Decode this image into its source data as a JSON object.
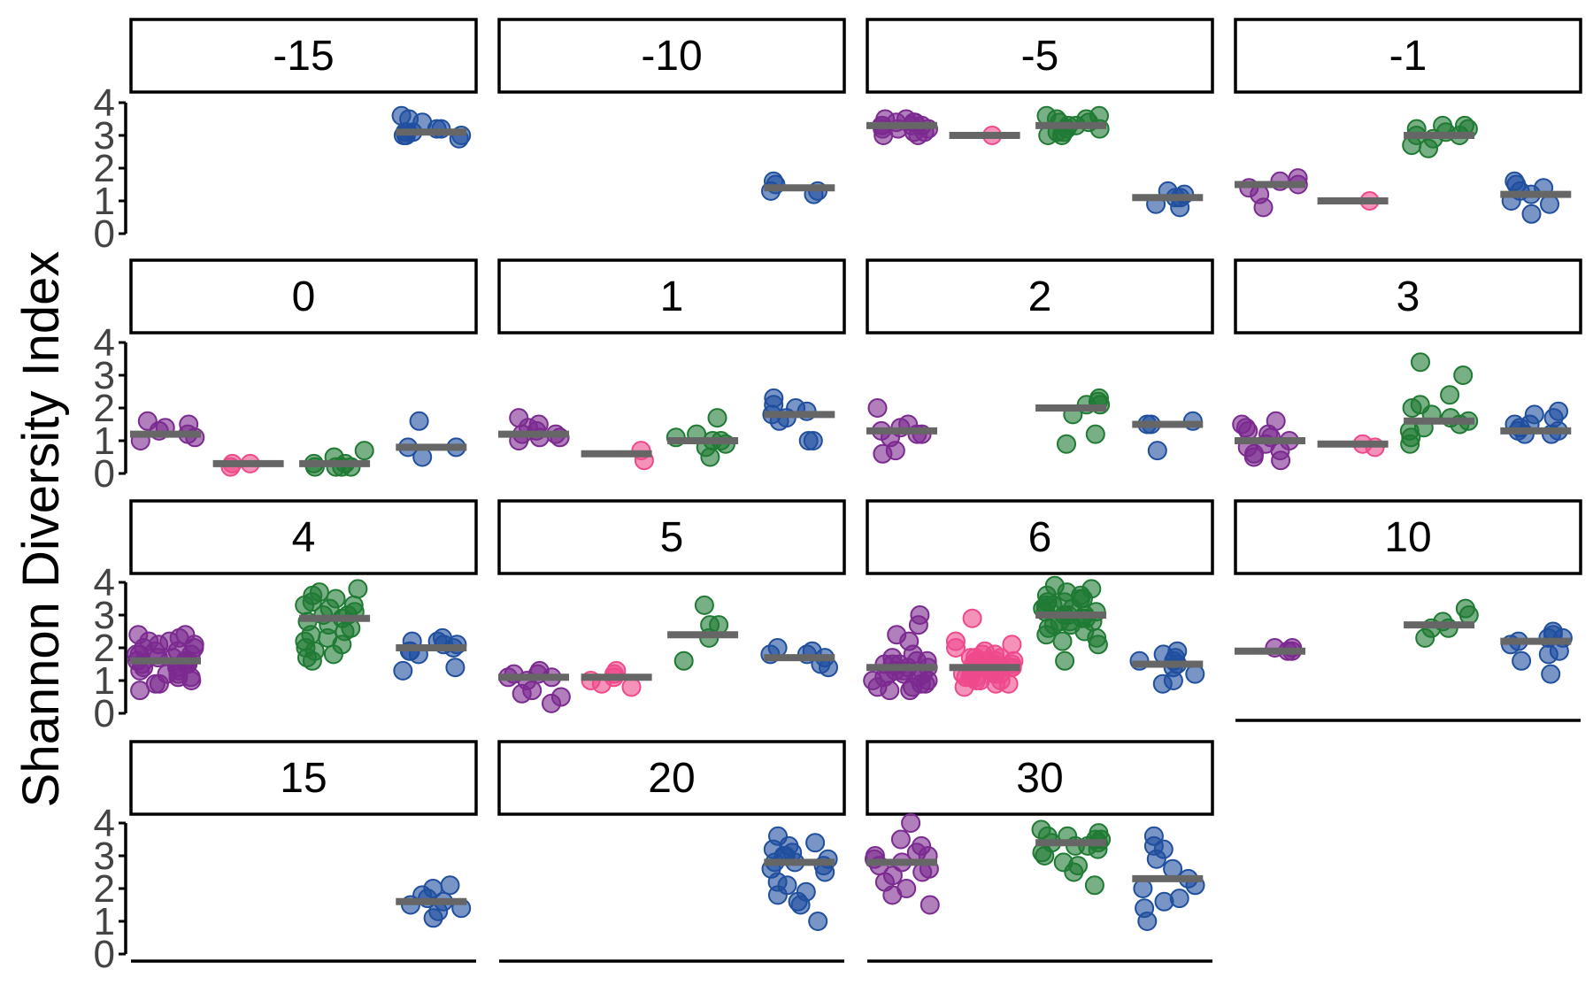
{
  "chart_data": {
    "type": "scatter",
    "ylabel": "Shannon Diversity Index",
    "y_ticks": [
      "0",
      "1",
      "2",
      "3",
      "4"
    ],
    "ylim": [
      0,
      4
    ],
    "group_colors": [
      "#7b2a90",
      "#ee4a8b",
      "#1f7a33",
      "#1f4f9e"
    ],
    "mean_line_color": "#666666",
    "point_alpha": 0.6,
    "panels": [
      {
        "label": "-15",
        "groups": [
          null,
          null,
          null,
          {
            "mean": 3.1,
            "values": [
              3.4,
              3.2,
              3.0,
              3.6,
              3.1,
              3.5,
              3.2,
              3.0,
              3.1,
              2.9,
              3.0,
              3.1
            ]
          }
        ]
      },
      {
        "label": "-10",
        "groups": [
          null,
          null,
          null,
          {
            "mean": 1.4,
            "values": [
              1.2,
              1.3,
              1.3,
              1.5,
              1.6
            ]
          }
        ]
      },
      {
        "label": "-5",
        "groups": [
          {
            "mean": 3.3,
            "values": [
              3.4,
              3.2,
              3.3,
              3.5,
              3.1,
              3.4,
              3.3,
              3.0,
              3.2,
              3.5,
              3.3,
              3.1,
              3.2,
              3.0,
              3.4,
              3.3
            ]
          },
          {
            "mean": 3.0,
            "values": [
              3.0
            ]
          },
          {
            "mean": 3.3,
            "values": [
              3.5,
              3.2,
              3.0,
              3.4,
              3.1,
              3.3,
              3.6,
              3.2,
              3.5,
              3.1,
              3.3,
              3.6,
              3.0,
              3.4
            ]
          },
          {
            "mean": 1.1,
            "values": [
              1.1,
              1.3,
              1.2,
              1.1,
              0.9,
              0.8
            ]
          }
        ]
      },
      {
        "label": "-1",
        "groups": [
          {
            "mean": 1.5,
            "values": [
              1.5,
              0.8,
              1.2,
              1.4,
              1.6,
              1.7
            ]
          },
          {
            "mean": 1.0,
            "values": [
              1.0
            ]
          },
          {
            "mean": 3.0,
            "values": [
              3.0,
              3.2,
              3.3,
              3.1,
              2.9,
              3.0,
              2.7,
              2.6,
              3.2,
              3.3
            ]
          },
          {
            "mean": 1.2,
            "values": [
              0.6,
              1.5,
              1.3,
              0.9,
              1.2,
              1.4,
              1.0,
              1.6
            ]
          }
        ]
      },
      {
        "label": "0",
        "groups": [
          {
            "mean": 1.2,
            "values": [
              1.3,
              1.0,
              1.5,
              1.4,
              1.6,
              1.2,
              1.1
            ]
          },
          {
            "mean": 0.3,
            "values": [
              0.3,
              0.3,
              0.2
            ]
          },
          {
            "mean": 0.3,
            "values": [
              0.2,
              0.3,
              0.2,
              0.5,
              0.7,
              0.2,
              0.3,
              0.2
            ]
          },
          {
            "mean": 0.8,
            "values": [
              0.8,
              0.8,
              0.5,
              1.6
            ]
          }
        ]
      },
      {
        "label": "1",
        "groups": [
          {
            "mean": 1.2,
            "values": [
              1.5,
              1.2,
              1.1,
              1.3,
              1.7,
              1.0,
              1.2,
              1.4,
              1.1
            ]
          },
          {
            "mean": 0.6,
            "values": [
              0.4,
              0.7
            ]
          },
          {
            "mean": 1.0,
            "values": [
              1.1,
              1.7,
              1.0,
              0.9,
              1.0,
              1.2,
              0.8,
              0.5
            ]
          },
          {
            "mean": 1.8,
            "values": [
              1.9,
              1.7,
              2.0,
              2.3,
              2.1,
              1.8,
              1.6,
              1.0,
              1.0
            ]
          }
        ]
      },
      {
        "label": "2",
        "groups": [
          {
            "mean": 1.3,
            "values": [
              1.4,
              1.2,
              1.5,
              2.0,
              1.1,
              1.3,
              0.6,
              0.7,
              1.2
            ]
          },
          null,
          {
            "mean": 2.0,
            "values": [
              1.2,
              2.3,
              1.8,
              2.1,
              0.9,
              2.2,
              2.1
            ]
          },
          {
            "mean": 1.5,
            "values": [
              1.6,
              1.5,
              0.7,
              1.5
            ]
          }
        ]
      },
      {
        "label": "3",
        "groups": [
          {
            "mean": 1.0,
            "values": [
              1.5,
              1.2,
              0.8,
              0.5,
              1.6,
              0.6,
              1.0,
              1.3,
              0.9,
              0.4,
              1.1,
              0.7,
              1.4
            ]
          },
          {
            "mean": 0.9,
            "values": [
              0.9,
              0.8
            ]
          },
          {
            "mean": 1.6,
            "values": [
              3.4,
              3.0,
              2.4,
              2.1,
              1.5,
              1.3,
              2.0,
              1.6,
              1.8,
              1.1,
              0.9,
              1.7,
              1.4
            ]
          },
          {
            "mean": 1.3,
            "values": [
              1.3,
              1.5,
              1.2,
              1.9,
              1.4,
              1.7,
              1.3,
              1.8,
              1.2,
              1.5
            ]
          }
        ]
      },
      {
        "label": "4",
        "groups": [
          {
            "mean": 1.6,
            "values": [
              2.4,
              1.8,
              1.2,
              0.9,
              1.5,
              2.2,
              0.7,
              1.1,
              1.9,
              2.1,
              1.6,
              1.4,
              2.3,
              1.0,
              1.7,
              2.0,
              1.3,
              1.8,
              1.5,
              2.4,
              1.2,
              1.6,
              0.9,
              1.9,
              2.2,
              1.4,
              1.7,
              1.1,
              2.0,
              1.5,
              1.8,
              1.3,
              2.1,
              1.6
            ]
          },
          null,
          {
            "mean": 2.9,
            "values": [
              3.5,
              3.3,
              3.1,
              2.8,
              2.4,
              2.0,
              1.6,
              3.7,
              3.4,
              3.0,
              2.6,
              2.2,
              1.8,
              3.6,
              3.2,
              2.9,
              2.5,
              2.1,
              1.7,
              3.8,
              3.3,
              2.7,
              2.3,
              1.9,
              3.0
            ]
          },
          {
            "mean": 2.0,
            "values": [
              1.4,
              1.3,
              2.1,
              1.9,
              2.2,
              2.3,
              1.8,
              2.0,
              2.1,
              1.9,
              2.2
            ]
          }
        ]
      },
      {
        "label": "5",
        "groups": [
          {
            "mean": 1.1,
            "values": [
              1.0,
              1.2,
              0.7,
              0.3,
              1.1,
              0.5,
              1.3,
              1.2,
              0.6,
              1.1
            ]
          },
          {
            "mean": 1.1,
            "values": [
              1.0,
              0.9,
              1.1,
              0.8,
              1.3,
              1.2
            ]
          },
          {
            "mean": 2.4,
            "values": [
              2.3,
              2.7,
              3.3,
              1.6,
              2.7
            ]
          },
          {
            "mean": 1.7,
            "values": [
              1.8,
              1.7,
              2.0,
              1.5,
              1.8,
              1.9,
              1.4
            ]
          }
        ]
      },
      {
        "label": "6",
        "groups": [
          {
            "mean": 1.4,
            "values": [
              1.5,
              1.2,
              0.8,
              1.7,
              2.4,
              1.0,
              1.3,
              2.7,
              0.7,
              1.4,
              1.1,
              1.6,
              3.0,
              0.9,
              1.2,
              1.5,
              1.8,
              1.0,
              1.3,
              0.8,
              1.6,
              2.2,
              1.1,
              1.4,
              0.7,
              1.2,
              1.5,
              0.9
            ]
          },
          {
            "mean": 1.4,
            "values": [
              2.1,
              1.8,
              1.5,
              1.2,
              0.9,
              1.6,
              1.3,
              1.0,
              2.0,
              1.7,
              1.4,
              1.1,
              0.8,
              1.5,
              1.2,
              2.2,
              1.9,
              1.6,
              1.3,
              1.0,
              1.7,
              1.4,
              1.1,
              2.9,
              1.5,
              1.2,
              0.9,
              1.6,
              1.3,
              1.8,
              1.5,
              1.2,
              1.6,
              1.4,
              1.1,
              1.7,
              1.3,
              1.0,
              1.5
            ]
          },
          {
            "mean": 3.0,
            "values": [
              3.8,
              3.5,
              3.2,
              2.9,
              2.6,
              3.6,
              3.3,
              3.0,
              2.7,
              2.2,
              3.9,
              3.4,
              3.1,
              2.8,
              2.4,
              3.7,
              3.2,
              2.9,
              2.5,
              2.1,
              3.5,
              3.0,
              2.7,
              3.3,
              2.8,
              3.6,
              3.1,
              1.6,
              2.3,
              3.4,
              2.8,
              3.0
            ]
          },
          {
            "mean": 1.5,
            "values": [
              1.9,
              1.5,
              0.9,
              1.7,
              1.2,
              1.6,
              1.8,
              1.0,
              1.4,
              1.6
            ]
          }
        ]
      },
      {
        "label": "10",
        "groups": [
          {
            "mean": 1.9,
            "values": [
              2.0,
              2.0,
              1.9,
              1.9
            ]
          },
          null,
          {
            "mean": 2.7,
            "values": [
              3.0,
              2.6,
              2.3,
              2.8,
              3.2,
              2.6
            ]
          },
          {
            "mean": 2.2,
            "values": [
              2.2,
              1.9,
              2.5,
              1.6,
              2.3,
              1.2,
              2.4,
              2.1,
              2.3,
              1.8
            ]
          }
        ]
      },
      {
        "label": "15",
        "groups": [
          null,
          null,
          null,
          {
            "mean": 1.6,
            "values": [
              1.5,
              1.8,
              1.3,
              2.0,
              1.6,
              1.1,
              1.7,
              1.4,
              2.1
            ]
          }
        ]
      },
      {
        "label": "20",
        "groups": [
          null,
          null,
          null,
          {
            "mean": 2.8,
            "values": [
              2.8,
              2.6,
              1.9,
              3.0,
              1.0,
              3.4,
              2.2,
              1.6,
              3.1,
              2.7,
              1.8,
              3.3,
              2.5,
              2.9,
              3.6,
              2.1,
              1.5,
              3.0,
              2.8,
              3.2
            ]
          }
        ]
      },
      {
        "label": "30",
        "groups": [
          {
            "mean": 2.8,
            "values": [
              3.5,
              3.0,
              2.8,
              4.0,
              2.5,
              3.0,
              2.2,
              2.9,
              1.5,
              2.6,
              3.3,
              2.0,
              2.7,
              3.1,
              1.8,
              2.4
            ]
          },
          null,
          {
            "mean": 3.4,
            "values": [
              3.5,
              3.8,
              3.3,
              3.0,
              3.6,
              2.5,
              3.2,
              3.7,
              3.4,
              2.8,
              3.5,
              2.1,
              3.1,
              3.6,
              3.4,
              3.3,
              2.7
            ]
          },
          {
            "mean": 2.3,
            "values": [
              1.7,
              2.3,
              1.0,
              2.0,
              3.6,
              2.6,
              1.4,
              3.2,
              1.6,
              2.1,
              2.9,
              3.3
            ]
          }
        ]
      }
    ]
  }
}
